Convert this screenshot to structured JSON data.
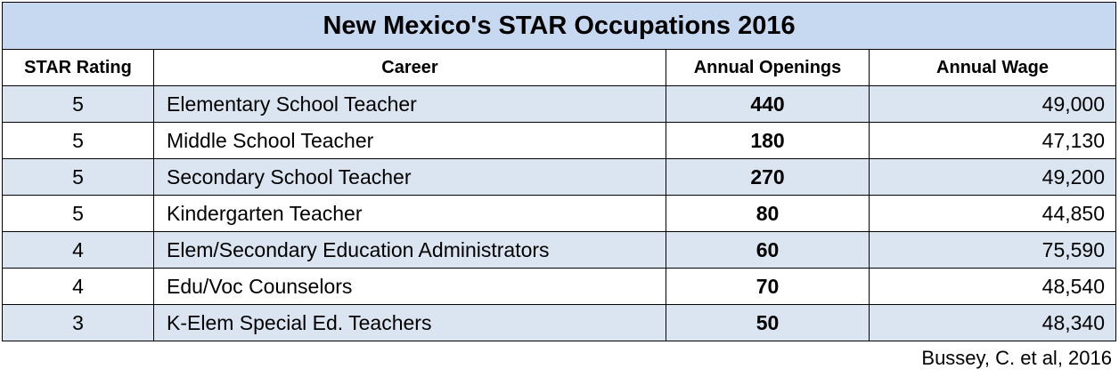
{
  "table": {
    "title": "New Mexico's STAR Occupations 2016",
    "columns": [
      "STAR Rating",
      "Career",
      "Annual Openings",
      "Annual Wage"
    ],
    "rows": [
      [
        "5",
        "Elementary School Teacher",
        "440",
        "49,000"
      ],
      [
        "5",
        "Middle School Teacher",
        "180",
        "47,130"
      ],
      [
        "5",
        "Secondary School Teacher",
        "270",
        "49,200"
      ],
      [
        "5",
        "Kindergarten Teacher",
        "80",
        "44,850"
      ],
      [
        "4",
        "Elem/Secondary Education Administrators",
        "60",
        "75,590"
      ],
      [
        "4",
        "Edu/Voc Counselors",
        "70",
        "48,540"
      ],
      [
        "3",
        "K-Elem Special Ed. Teachers",
        "50",
        "48,340"
      ]
    ]
  },
  "source": "Bussey, C. et al, 2016"
}
